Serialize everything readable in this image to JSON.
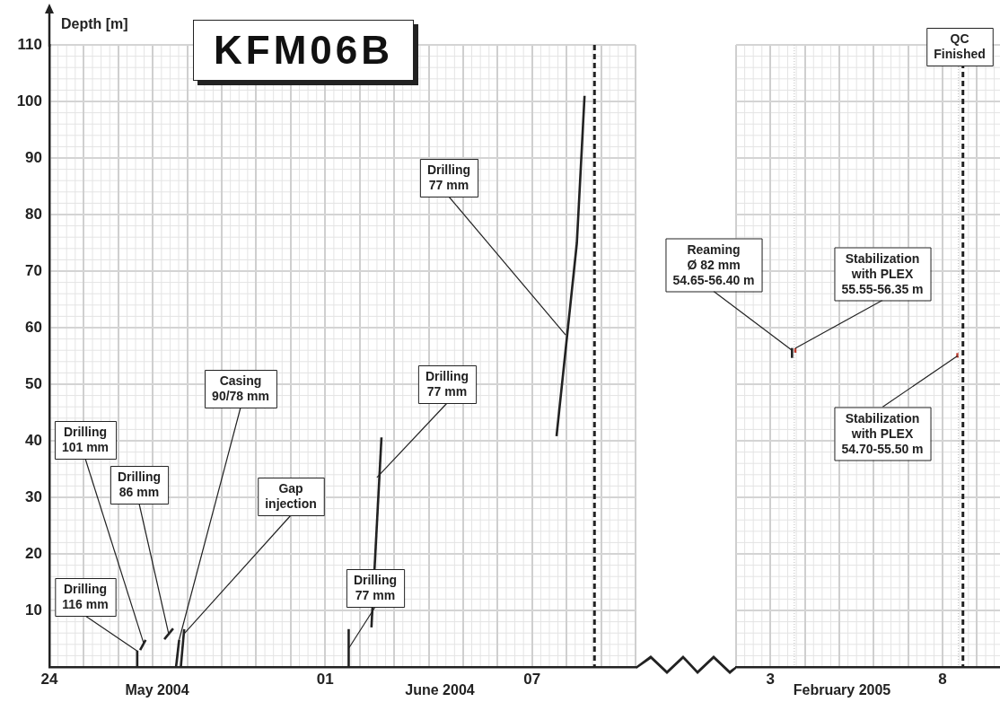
{
  "chart_data": [
    {
      "type": "line",
      "title": "KFM06B",
      "ylabel": "Depth [m]",
      "grid": true,
      "legend": false,
      "xlim": [
        "2004-05-24",
        "2004-06-10"
      ],
      "xticks": [
        {
          "value": "2004-05-24",
          "label": "24"
        },
        {
          "value": "2004-05-25",
          "label": null
        },
        {
          "value": "2004-05-26",
          "label": null
        },
        {
          "value": "2004-05-27",
          "label": null
        },
        {
          "value": "2004-05-28",
          "label": null
        },
        {
          "value": "2004-05-29",
          "label": null
        },
        {
          "value": "2004-05-30",
          "label": null
        },
        {
          "value": "2004-05-31",
          "label": null
        },
        {
          "value": "2004-06-01",
          "label": "01"
        },
        {
          "value": "2004-06-02",
          "label": null
        },
        {
          "value": "2004-06-03",
          "label": null
        },
        {
          "value": "2004-06-04",
          "label": null
        },
        {
          "value": "2004-06-05",
          "label": null
        },
        {
          "value": "2004-06-06",
          "label": null
        },
        {
          "value": "2004-06-07",
          "label": "07"
        },
        {
          "value": "2004-06-08",
          "label": null
        },
        {
          "value": "2004-06-09",
          "label": null
        },
        {
          "value": "2004-06-10",
          "label": null
        }
      ],
      "ylim": [
        0,
        110
      ],
      "yticks": [
        {
          "value": 0,
          "label": null
        },
        10,
        20,
        30,
        40,
        50,
        60,
        70,
        80,
        90,
        100,
        110
      ],
      "series": [
        {
          "color": "#222222",
          "x": [
            "2004-05-26T12:40",
            "2004-05-26T13:10"
          ],
          "values": [
            0,
            2.9
          ]
        },
        {
          "color": "#222222",
          "x": [
            "2004-05-26T15:10",
            "2004-05-26T19:00"
          ],
          "values": [
            3.0,
            4.8
          ]
        },
        {
          "color": "#222222",
          "x": [
            "2004-05-27T08:00",
            "2004-05-27T14:10"
          ],
          "values": [
            4.9,
            6.8
          ]
        },
        {
          "color": "#222222",
          "x": [
            "2004-05-27T16:10",
            "2004-05-27T18:20"
          ],
          "values": [
            0,
            4.8
          ]
        },
        {
          "color": "#222222",
          "x": [
            "2004-05-27T19:30",
            "2004-05-27T21:50"
          ],
          "values": [
            0,
            6.7
          ]
        },
        {
          "color": "#222222",
          "x": [
            "2004-06-01T16:20",
            "2004-06-01T16:20"
          ],
          "values": [
            0,
            6.7
          ]
        },
        {
          "color": "#222222",
          "x": [
            "2004-06-02T08:10",
            "2004-06-02T15:10"
          ],
          "values": [
            7.0,
            40.6
          ]
        },
        {
          "color": "#222222",
          "x": [
            "2004-06-07T17:00",
            "2004-06-08T07:10",
            "2004-06-08T12:30"
          ],
          "values": [
            40.8,
            75.0,
            101
          ]
        }
      ],
      "ref_lines": [
        {
          "axis": "x",
          "value": "2004-06-08T19:25",
          "color": "#222222",
          "line_style": "dashed"
        }
      ],
      "annotations": [
        {
          "text": "Drilling\n116 mm",
          "x": "2004-05-26T13:10",
          "y": 2.8
        },
        {
          "text": "Drilling\n101 mm",
          "x": "2004-05-26T17:30",
          "y": 4.3
        },
        {
          "text": "Drilling\n86 mm",
          "x": "2004-05-27T11:00",
          "y": 5.9
        },
        {
          "text": "Casing\n90/78 mm",
          "x": "2004-05-27T18:20",
          "y": 4.8
        },
        {
          "text": "Gap\ninjection",
          "x": "2004-05-27T21:50",
          "y": 5.9
        },
        {
          "text": "Drilling\n77 mm",
          "x": "2004-06-01T16:20",
          "y": 3.3
        },
        {
          "text": "Drilling\n77 mm",
          "x": "2004-06-02T12:00",
          "y": 33.5
        },
        {
          "text": "Drilling\n77 mm",
          "x": "2004-06-07T23:20",
          "y": 58.7
        },
        "May 2004",
        "June 2004"
      ]
    },
    {
      "type": "line",
      "grid": true,
      "legend": false,
      "tick_labels": "x",
      "xlim": [
        "2005-02-02",
        "2005-02-09T16:00"
      ],
      "xticks": [
        {
          "value": "2005-02-02",
          "label": null
        },
        {
          "value": "2005-02-03",
          "label": "3"
        },
        {
          "value": "2005-02-04",
          "label": null
        },
        {
          "value": "2005-02-05",
          "label": null
        },
        {
          "value": "2005-02-06",
          "label": null
        },
        {
          "value": "2005-02-07",
          "label": null
        },
        {
          "value": "2005-02-08",
          "label": "8"
        },
        {
          "value": "2005-02-09",
          "label": null
        }
      ],
      "ylim": [
        0,
        110
      ],
      "yticks": [
        0,
        10,
        20,
        30,
        40,
        50,
        60,
        70,
        80,
        90,
        100,
        110
      ],
      "series": [
        {
          "color": "#222222",
          "x": [
            "2005-02-03T15:00",
            "2005-02-03T15:00"
          ],
          "values": [
            54.65,
            56.4
          ]
        },
        {
          "color": "#c0392b",
          "x": [
            "2005-02-03T17:15",
            "2005-02-03T17:15"
          ],
          "values": [
            55.55,
            56.35
          ]
        },
        {
          "color": "#c0392b",
          "x": [
            "2005-02-08T10:20",
            "2005-02-08T10:20"
          ],
          "values": [
            54.7,
            55.5
          ]
        }
      ],
      "ref_lines": [
        {
          "axis": "x",
          "value": "2005-02-03T16:35",
          "color": "#bbbbbb",
          "line_style": "dotted"
        },
        {
          "axis": "x",
          "value": "2005-02-08T11:00",
          "color": "#bbbbbb",
          "line_style": "dotted"
        },
        {
          "axis": "x",
          "value": "2005-02-08T14:10",
          "color": "#222222",
          "line_style": "dashed",
          "label": "QC\nFinished"
        }
      ],
      "annotations": [
        {
          "text": "Reaming\nØ 82 mm\n54.65-56.40 m",
          "x": "2005-02-03T15:00",
          "y": 56.0
        },
        {
          "text": "Stabilization\nwith PLEX\n55.55-56.35 m",
          "x": "2005-02-03T17:15",
          "y": 56.35
        },
        {
          "text": "Stabilization\nwith PLEX\n54.70-55.50 m",
          "x": "2005-02-08T10:20",
          "y": 55.0
        },
        "February 2005"
      ]
    }
  ]
}
